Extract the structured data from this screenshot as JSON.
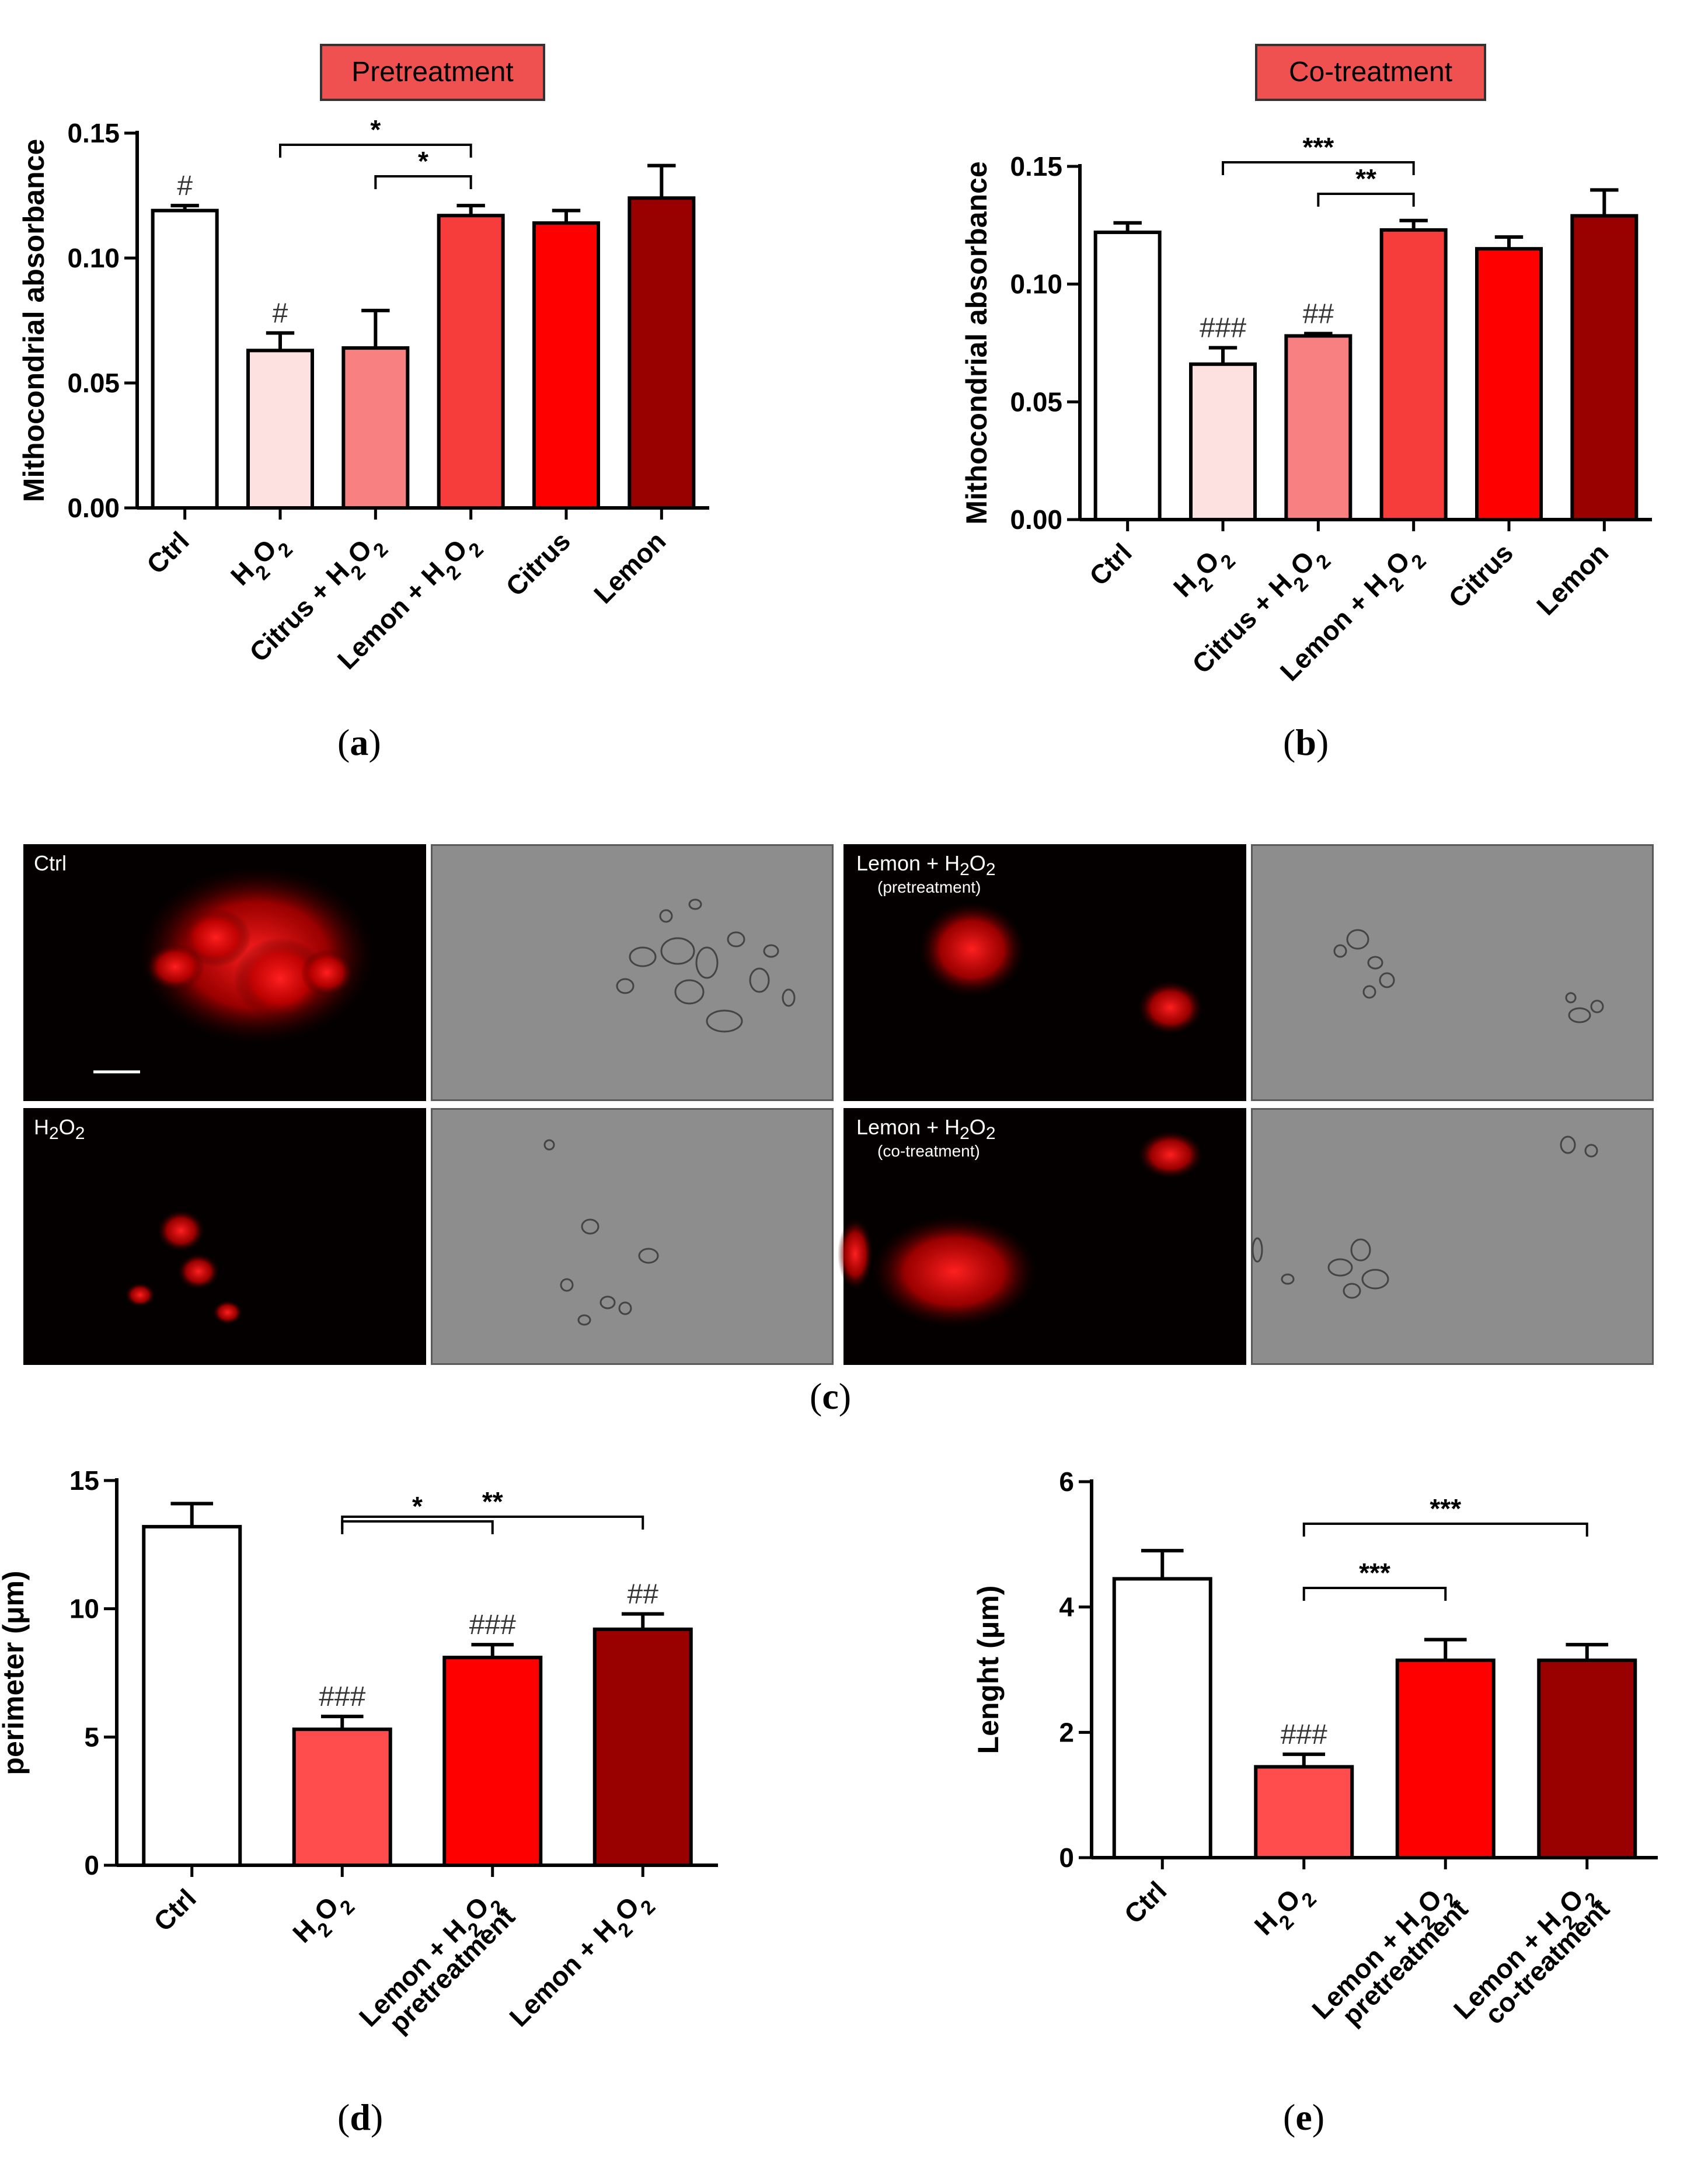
{
  "chart_data": [
    {
      "panel": "a",
      "type": "bar",
      "title": "Pretreatment",
      "ylabel": "Mithocondrial absorbance",
      "ylim": [
        0,
        0.15
      ],
      "yticks": [
        "0.00",
        "0.05",
        "0.10",
        "0.15"
      ],
      "categories": [
        "Ctrl",
        "H2O2",
        "Citrus + H2O2",
        "Lemon + H2O2",
        "Citrus",
        "Lemon"
      ],
      "values": [
        0.119,
        0.063,
        0.064,
        0.117,
        0.114,
        0.124
      ],
      "errors": [
        0.002,
        0.007,
        0.015,
        0.004,
        0.005,
        0.013
      ],
      "colors": [
        "#ffffff",
        "#fde0e0",
        "#f98080",
        "#f73c3c",
        "#fe0000",
        "#990000"
      ],
      "annotations": [
        "#",
        "#",
        "",
        "",
        "",
        ""
      ],
      "brackets": [
        {
          "from": 1,
          "to": 3,
          "label": "*"
        },
        {
          "from": 2,
          "to": 3,
          "label": "*"
        }
      ]
    },
    {
      "panel": "b",
      "type": "bar",
      "title": "Co-treatment",
      "ylabel": "Mithocondrial absorbance",
      "ylim": [
        0,
        0.15
      ],
      "yticks": [
        "0.00",
        "0.05",
        "0.10",
        "0.15"
      ],
      "categories": [
        "Ctrl",
        "H2O2",
        "Citrus + H2O2",
        "Lemon + H2O2",
        "Citrus",
        "Lemon"
      ],
      "values": [
        0.122,
        0.066,
        0.078,
        0.123,
        0.115,
        0.129
      ],
      "errors": [
        0.004,
        0.007,
        0.001,
        0.004,
        0.005,
        0.011
      ],
      "colors": [
        "#ffffff",
        "#fde0e0",
        "#f98080",
        "#f73c3c",
        "#fe0000",
        "#990000"
      ],
      "annotations": [
        "",
        "###",
        "##",
        "",
        "",
        ""
      ],
      "brackets": [
        {
          "from": 1,
          "to": 3,
          "label": "***"
        },
        {
          "from": 2,
          "to": 3,
          "label": "**"
        }
      ]
    },
    {
      "panel": "d",
      "type": "bar",
      "ylabel": "perimeter (μm)",
      "ylim": [
        0,
        15
      ],
      "yticks": [
        "0",
        "5",
        "10",
        "15"
      ],
      "categories": [
        "Ctrl",
        "H2O2",
        "Lemon + H2O2 pretreatment",
        "Lemon + H2O2"
      ],
      "values": [
        13.2,
        5.3,
        8.1,
        9.2
      ],
      "errors": [
        0.9,
        0.5,
        0.5,
        0.6
      ],
      "colors": [
        "#ffffff",
        "#ff4c4c",
        "#fe0000",
        "#990000"
      ],
      "annotations": [
        "",
        "###",
        "###",
        "##"
      ],
      "brackets": [
        {
          "from": 1,
          "to": 2,
          "label": "*"
        },
        {
          "from": 1,
          "to": 3,
          "label": "**"
        }
      ]
    },
    {
      "panel": "e",
      "type": "bar",
      "ylabel": "Lenght (μm)",
      "ylim": [
        0,
        6
      ],
      "yticks": [
        "0",
        "2",
        "4",
        "6"
      ],
      "categories": [
        "Ctrl",
        "H2O2",
        "Lemon + H2O2 pretreatment",
        "Lemon + H2O2 co-treatment"
      ],
      "values": [
        4.45,
        1.45,
        3.15,
        3.15
      ],
      "errors": [
        0.45,
        0.2,
        0.33,
        0.25
      ],
      "colors": [
        "#ffffff",
        "#ff4c4c",
        "#fe0000",
        "#990000"
      ],
      "annotations": [
        "",
        "###",
        "",
        ""
      ],
      "brackets": [
        {
          "from": 1,
          "to": 2,
          "label": "***"
        },
        {
          "from": 1,
          "to": 3,
          "label": "***"
        }
      ]
    }
  ],
  "panel_c": {
    "labels": [
      "Ctrl",
      "H2O2",
      "Lemon + H2O2",
      "Lemon + H2O2"
    ],
    "sublabels": [
      "",
      "",
      "(pretreatment)",
      "(co-treatment)"
    ]
  },
  "captions": {
    "a": "a",
    "b": "b",
    "c": "c",
    "d": "d",
    "e": "e"
  }
}
